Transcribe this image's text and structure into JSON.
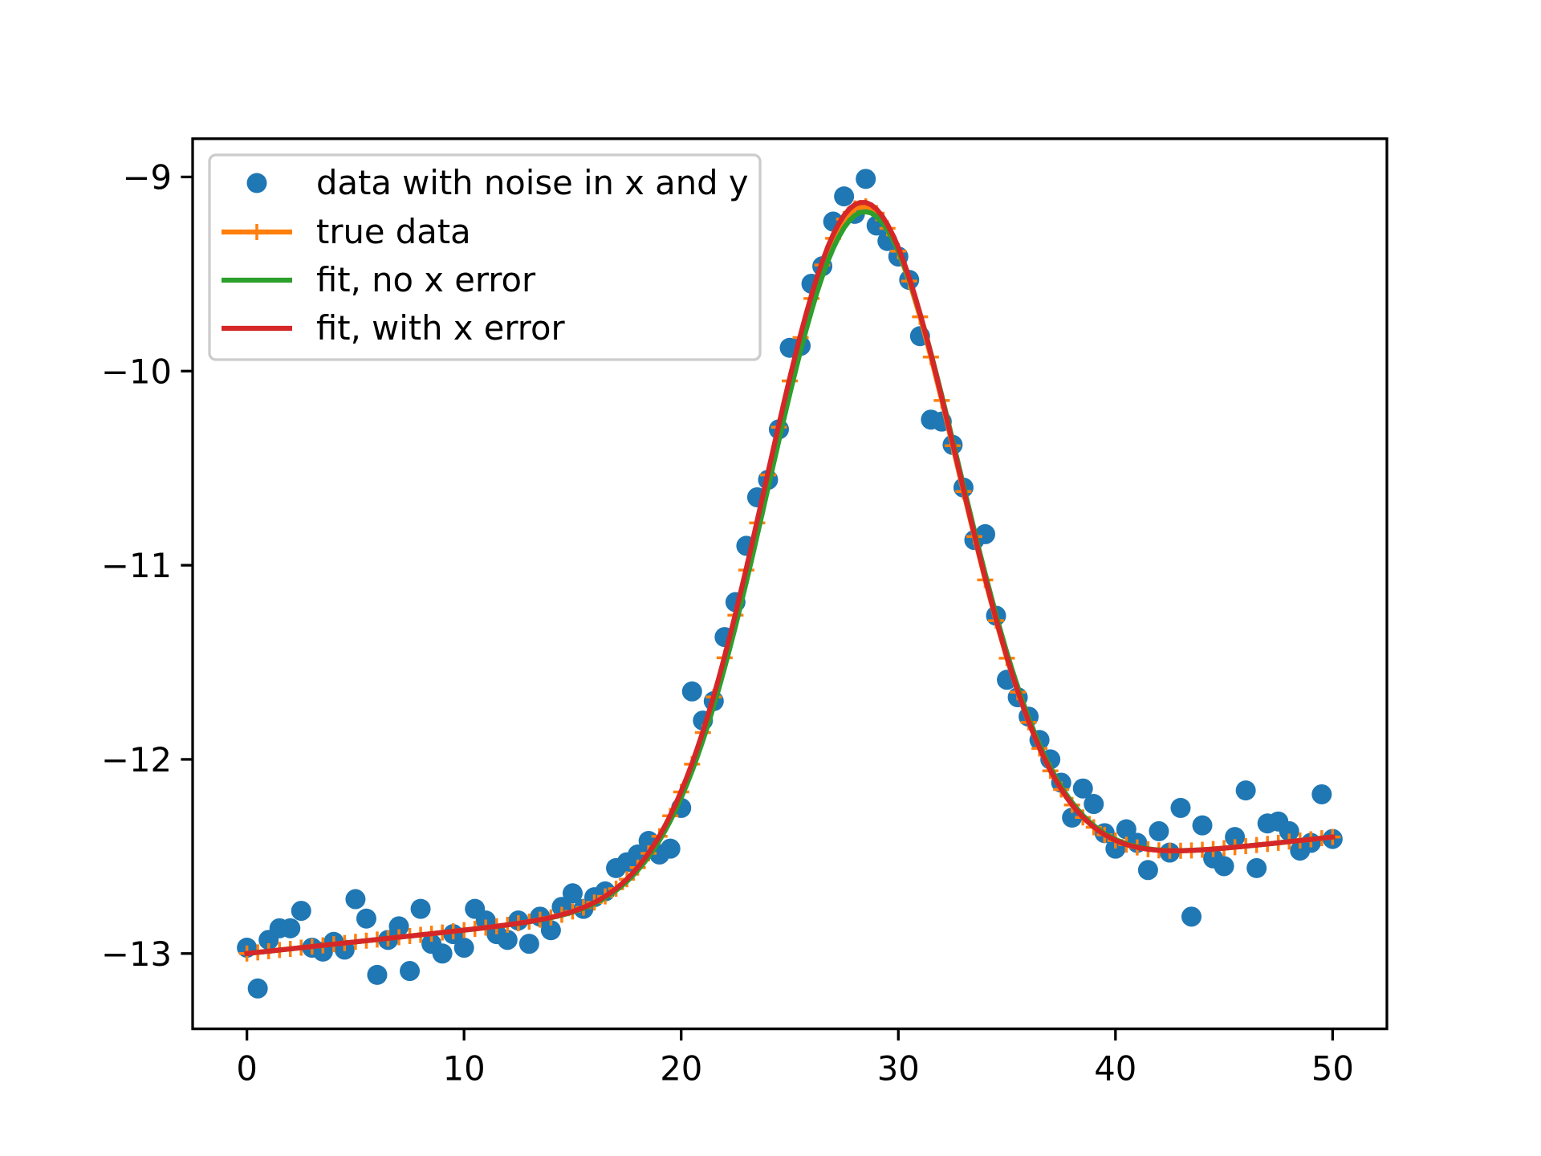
{
  "chart_data": {
    "type": "line",
    "title": "",
    "xlabel": "",
    "ylabel": "",
    "xlim": [
      -2.5,
      52.5
    ],
    "ylim": [
      -13.388,
      -8.803
    ],
    "grid": false,
    "legend_placement": "top-left",
    "xticks": [
      0,
      10,
      20,
      30,
      40,
      50
    ],
    "xtick_labels": [
      "0",
      "10",
      "20",
      "30",
      "40",
      "50"
    ],
    "yticks": [
      -9,
      -10,
      -11,
      -12,
      -13
    ],
    "ytick_labels": [
      "−9",
      "−10",
      "−11",
      "−12",
      "−13"
    ],
    "series": [
      {
        "name": "data with noise in x and y",
        "kind": "scatter",
        "color": "#1f77b4",
        "x": [
          0,
          0.5,
          1,
          1.5,
          2,
          2.5,
          3,
          3.5,
          4,
          4.5,
          5,
          5.5,
          6,
          6.5,
          7,
          7.5,
          8,
          8.5,
          9,
          9.5,
          10,
          10.5,
          11,
          11.5,
          12,
          12.5,
          13,
          13.5,
          14,
          14.5,
          15,
          15.5,
          16,
          16.5,
          17,
          17.5,
          18,
          18.5,
          19,
          19.5,
          20,
          20.5,
          21,
          21.5,
          22,
          22.5,
          23,
          23.5,
          24,
          24.5,
          25,
          25.5,
          26,
          26.5,
          27,
          27.5,
          28,
          28.5,
          29,
          29.5,
          30,
          30.5,
          31,
          31.5,
          32,
          32.5,
          33,
          33.5,
          34,
          34.5,
          35,
          35.5,
          36,
          36.5,
          37,
          37.5,
          38,
          38.5,
          39,
          39.5,
          40,
          40.5,
          41,
          41.5,
          42,
          42.5,
          43,
          43.5,
          44,
          44.5,
          45,
          45.5,
          46,
          46.5,
          47,
          47.5,
          48,
          48.5,
          49,
          49.5,
          50
        ],
        "y": [
          -12.97,
          -13.18,
          -12.93,
          -12.87,
          -12.87,
          -12.78,
          -12.97,
          -12.99,
          -12.94,
          -12.98,
          -12.72,
          -12.82,
          -13.11,
          -12.93,
          -12.86,
          -13.09,
          -12.77,
          -12.95,
          -13.0,
          -12.9,
          -12.97,
          -12.77,
          -12.83,
          -12.9,
          -12.93,
          -12.83,
          -12.95,
          -12.81,
          -12.88,
          -12.76,
          -12.69,
          -12.77,
          -12.71,
          -12.68,
          -12.56,
          -12.53,
          -12.49,
          -12.42,
          -12.49,
          -12.46,
          -12.25,
          -11.65,
          -11.8,
          -11.7,
          -11.37,
          -11.19,
          -10.9,
          -10.65,
          -10.56,
          -10.3,
          -9.88,
          -9.87,
          -9.55,
          -9.46,
          -9.23,
          -9.1,
          -9.19,
          -9.01,
          -9.25,
          -9.33,
          -9.41,
          -9.53,
          -9.82,
          -10.25,
          -10.26,
          -10.38,
          -10.6,
          -10.87,
          -10.84,
          -11.26,
          -11.59,
          -11.68,
          -11.78,
          -11.9,
          -12.0,
          -12.12,
          -12.3,
          -12.15,
          -12.23,
          -12.38,
          -12.46,
          -12.36,
          -12.43,
          -12.57,
          -12.37,
          -12.48,
          -12.25,
          -12.81,
          -12.34,
          -12.51,
          -12.55,
          -12.4,
          -12.16,
          -12.56,
          -12.33,
          -12.32,
          -12.37,
          -12.47,
          -12.43,
          -12.18,
          -12.41
        ]
      },
      {
        "name": "true data",
        "kind": "line+marker",
        "color": "#ff7f0e",
        "model": {
          "offset": -13.0,
          "slope": 0.012,
          "amplitude": 3.51,
          "center": 28.3,
          "sigma": 4.4
        },
        "x_range": [
          0,
          50
        ],
        "x_step": 0.5
      },
      {
        "name": "fit, no x error",
        "kind": "line",
        "color": "#2ca02c",
        "model": {
          "offset": -13.0,
          "slope": 0.012,
          "amplitude": 3.48,
          "center": 28.4,
          "sigma": 4.4
        },
        "x_range": [
          0,
          50
        ],
        "x_step": 0.25
      },
      {
        "name": "fit, with x error",
        "kind": "line",
        "color": "#d62728",
        "model": {
          "offset": -13.0,
          "slope": 0.012,
          "amplitude": 3.53,
          "center": 28.3,
          "sigma": 4.4
        },
        "x_range": [
          0,
          50
        ],
        "x_step": 0.25
      }
    ]
  }
}
